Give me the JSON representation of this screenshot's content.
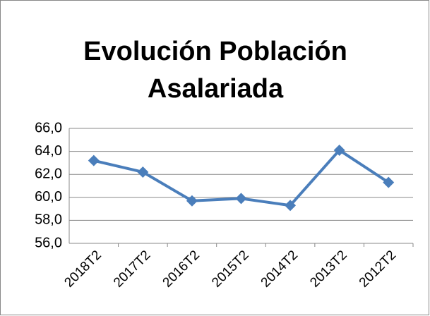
{
  "chart_data": {
    "type": "line",
    "title": [
      "Evolución Población",
      "Asalariada"
    ],
    "categories": [
      "2018T2",
      "2017T2",
      "2016T2",
      "2015T2",
      "2014T2",
      "2013T2",
      "2012T2"
    ],
    "series": [
      {
        "color": "#4a7ebb",
        "values": [
          63.2,
          62.2,
          59.7,
          59.9,
          59.3,
          64.1,
          61.3
        ]
      }
    ],
    "ylim": [
      56,
      66
    ],
    "yticks": [
      {
        "value": 56,
        "label": "56,0"
      },
      {
        "value": 58,
        "label": "58,0"
      },
      {
        "value": 60,
        "label": "60,0"
      },
      {
        "value": 62,
        "label": "62,0"
      },
      {
        "value": 64,
        "label": "64,0"
      },
      {
        "value": 66,
        "label": "66,0"
      }
    ],
    "grid": true
  }
}
